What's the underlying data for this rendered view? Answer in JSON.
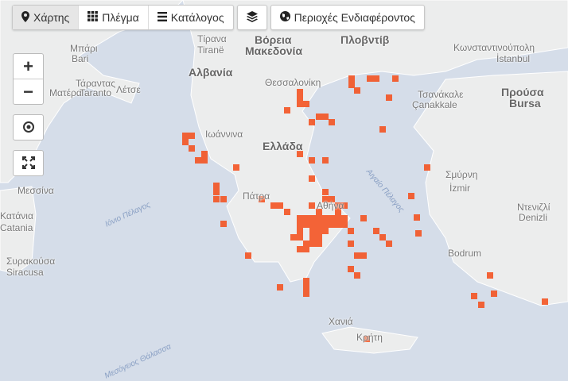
{
  "toolbar": {
    "tabs": [
      {
        "label": "Χάρτης",
        "icon": "map-marker-icon",
        "active": true
      },
      {
        "label": "Πλέγμα",
        "icon": "grid-icon",
        "active": false
      },
      {
        "label": "Κατάλογος",
        "icon": "list-icon",
        "active": false
      }
    ],
    "layers_icon": "layers-icon",
    "regions": {
      "label": "Περιοχές Ενδιαφέροντος",
      "icon": "globe-icon"
    }
  },
  "controls": {
    "zoom_in": "+",
    "zoom_out": "−",
    "locate_icon": "crosshair-icon",
    "fullscreen_icon": "expand-icon"
  },
  "map_labels": [
    {
      "text": "Μπάρι"
    },
    {
      "text": "Bari"
    },
    {
      "text": "Τάραντας"
    },
    {
      "text": "Taranto"
    },
    {
      "text": "Ματέρα"
    },
    {
      "text": "Λέτσε"
    },
    {
      "text": "Τίρανα"
    },
    {
      "text": "Tiranë"
    },
    {
      "text": "Βόρεια"
    },
    {
      "text": "Μακεδονία"
    },
    {
      "text": "Αλβανία"
    },
    {
      "text": "Πλοβντίβ"
    },
    {
      "text": "Θεσσαλονίκη"
    },
    {
      "text": "Κωνσταντινούπολη"
    },
    {
      "text": "İstanbul"
    },
    {
      "text": "Τσανάκαλε"
    },
    {
      "text": "Çanakkale"
    },
    {
      "text": "Προύσα"
    },
    {
      "text": "Bursa"
    },
    {
      "text": "Ιωάννινα"
    },
    {
      "text": "Ελλάδα"
    },
    {
      "text": "Σμύρνη"
    },
    {
      "text": "İzmir"
    },
    {
      "text": "Μεσσίνα"
    },
    {
      "text": "Κατάνια"
    },
    {
      "text": "Catania"
    },
    {
      "text": "Συρακούσα"
    },
    {
      "text": "Siracusa"
    },
    {
      "text": "Πάτρα"
    },
    {
      "text": "Αθήνα"
    },
    {
      "text": "Ντενιζλί"
    },
    {
      "text": "Denizli"
    },
    {
      "text": "Bodrum"
    },
    {
      "text": "Χανιά"
    },
    {
      "text": "Κρήτη"
    },
    {
      "text": "Μεσόγειος Θάλασσα"
    },
    {
      "text": "Ιόνιο Πέλαγος"
    },
    {
      "text": "Αιγαίο Πέλαγος"
    }
  ],
  "heat_color": "#f4511e"
}
